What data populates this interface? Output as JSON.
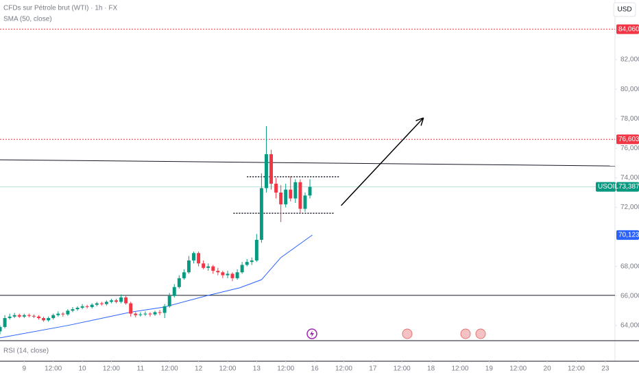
{
  "chart_data": {
    "type": "candlestick",
    "title": "CFDs sur Pétrole brut (WTI) · 1h · FX",
    "indicator": "SMA (50, close)",
    "lower_pane": "RSI (14, close)",
    "currency": "USD",
    "up_color": "#089981",
    "down_color": "#f23645",
    "x": [
      -10,
      -8,
      -6,
      -4,
      -2,
      0,
      2,
      4,
      6,
      8,
      10,
      12,
      14,
      16,
      18,
      20,
      22,
      24,
      26,
      28,
      30,
      32,
      34,
      36,
      38,
      40,
      42,
      44,
      46,
      48,
      50,
      52,
      54,
      56,
      58,
      60,
      62,
      64,
      66,
      68,
      70,
      72,
      74,
      76,
      78,
      80,
      82,
      84,
      86,
      88,
      90,
      92,
      94,
      96,
      98,
      100,
      102,
      104,
      106,
      108,
      110,
      112,
      114,
      116,
      118
    ],
    "open": [
      63.6,
      63.9,
      64.5,
      64.6,
      64.7,
      64.6,
      64.7,
      64.65,
      64.6,
      64.5,
      64.35,
      64.5,
      64.7,
      64.8,
      64.75,
      65.0,
      65.1,
      65.2,
      65.3,
      65.25,
      65.4,
      65.5,
      65.45,
      65.6,
      65.7,
      65.6,
      65.9,
      65.5,
      64.8,
      64.7,
      64.75,
      64.8,
      64.75,
      64.9,
      64.85,
      65.3,
      66.0,
      66.6,
      67.2,
      67.6,
      68.4,
      68.9,
      68.2,
      67.9,
      68.0,
      67.7,
      67.6,
      67.4,
      67.5,
      67.2,
      67.6,
      68.1,
      68.3,
      68.4,
      69.8,
      73.3,
      75.6,
      73.6,
      73.0,
      72.2,
      73.2,
      72.6,
      73.7,
      71.9,
      72.8
    ],
    "high": [
      64.0,
      64.7,
      64.8,
      64.85,
      64.8,
      64.8,
      64.8,
      64.75,
      64.7,
      64.6,
      64.6,
      64.8,
      64.95,
      64.9,
      65.1,
      65.25,
      65.3,
      65.45,
      65.4,
      65.5,
      65.6,
      65.6,
      65.7,
      65.8,
      65.8,
      66.1,
      66.0,
      65.6,
      64.9,
      64.9,
      64.95,
      64.9,
      65.0,
      65.05,
      65.45,
      66.2,
      66.8,
      67.4,
      67.8,
      68.7,
      69.0,
      69.0,
      68.4,
      68.2,
      68.1,
      67.9,
      67.7,
      67.7,
      67.6,
      67.8,
      68.3,
      68.5,
      68.6,
      70.2,
      74.3,
      77.5,
      75.9,
      74.0,
      73.5,
      73.6,
      74.1,
      73.9,
      73.9,
      73.0,
      73.9
    ],
    "low": [
      63.4,
      63.8,
      64.4,
      64.5,
      64.5,
      64.5,
      64.55,
      64.5,
      64.4,
      64.25,
      64.25,
      64.4,
      64.6,
      64.6,
      64.65,
      64.9,
      65.0,
      65.1,
      65.15,
      65.15,
      65.3,
      65.35,
      65.35,
      65.5,
      65.5,
      65.5,
      65.4,
      64.6,
      64.55,
      64.6,
      64.65,
      64.6,
      64.65,
      64.7,
      64.5,
      65.2,
      65.9,
      66.5,
      67.1,
      67.5,
      68.2,
      68.0,
      67.8,
      67.7,
      67.5,
      67.4,
      67.2,
      67.2,
      67.0,
      67.1,
      67.5,
      68.0,
      68.1,
      68.3,
      69.6,
      73.0,
      73.2,
      72.6,
      71.0,
      72.0,
      72.4,
      72.3,
      71.6,
      71.7,
      72.6
    ],
    "close": [
      63.9,
      64.5,
      64.6,
      64.7,
      64.6,
      64.7,
      64.65,
      64.6,
      64.5,
      64.35,
      64.5,
      64.7,
      64.8,
      64.75,
      65.0,
      65.1,
      65.2,
      65.3,
      65.25,
      65.4,
      65.5,
      65.45,
      65.6,
      65.7,
      65.6,
      65.9,
      65.5,
      64.8,
      64.7,
      64.75,
      64.8,
      64.75,
      64.9,
      64.85,
      65.3,
      66.0,
      66.6,
      67.2,
      67.6,
      68.4,
      68.9,
      68.2,
      67.9,
      68.0,
      67.7,
      67.6,
      67.4,
      67.5,
      67.2,
      67.6,
      68.1,
      68.3,
      68.4,
      69.8,
      73.3,
      75.6,
      73.6,
      73.0,
      72.2,
      73.2,
      72.6,
      73.7,
      71.9,
      72.8,
      73.387
    ],
    "sma": {
      "color": "#2962ff",
      "x": [
        -10,
        18,
        44,
        58,
        75,
        89,
        98,
        106,
        119
      ],
      "values": [
        63.16,
        64.0,
        64.9,
        65.25,
        66.0,
        66.55,
        67.1,
        68.6,
        70.123
      ]
    },
    "xlim": [
      -10,
      244
    ],
    "ylim": [
      62.97,
      86.04
    ],
    "xticks": [
      {
        "value": 0,
        "label": "9"
      },
      {
        "value": 12,
        "label": "12:00"
      },
      {
        "value": 24,
        "label": "10"
      },
      {
        "value": 36,
        "label": "12:00"
      },
      {
        "value": 48,
        "label": "11"
      },
      {
        "value": 60,
        "label": "12:00"
      },
      {
        "value": 72,
        "label": "12"
      },
      {
        "value": 84,
        "label": "12:00"
      },
      {
        "value": 96,
        "label": "13"
      },
      {
        "value": 108,
        "label": "12:00"
      },
      {
        "value": 120,
        "label": "16"
      },
      {
        "value": 132,
        "label": "12:00"
      },
      {
        "value": 144,
        "label": "17"
      },
      {
        "value": 156,
        "label": "12:00"
      },
      {
        "value": 168,
        "label": "18"
      },
      {
        "value": 180,
        "label": "12:00"
      },
      {
        "value": 192,
        "label": "19"
      },
      {
        "value": 204,
        "label": "12:00"
      },
      {
        "value": 216,
        "label": "20"
      },
      {
        "value": 228,
        "label": "12:00"
      },
      {
        "value": 240,
        "label": "23"
      }
    ],
    "yticks": [
      {
        "value": 64,
        "label": "64,000"
      },
      {
        "value": 66,
        "label": "66,000"
      },
      {
        "value": 68,
        "label": "68,000"
      },
      {
        "value": 72,
        "label": "72,000"
      },
      {
        "value": 74,
        "label": "74,000"
      },
      {
        "value": 76,
        "label": "76,000"
      },
      {
        "value": 78,
        "label": "78,000"
      },
      {
        "value": 80,
        "label": "80,000"
      },
      {
        "value": 82,
        "label": "82,000"
      }
    ],
    "price_labels": [
      {
        "value": 84.06,
        "label": "84,060",
        "color": "#f23645",
        "line": "dotted"
      },
      {
        "value": 76.603,
        "label": "76,603",
        "color": "#f23645",
        "line": "dotted"
      },
      {
        "value": 73.387,
        "label": "73,387",
        "symbol": "USOIL",
        "color": "#089981",
        "line": "solid"
      },
      {
        "value": 70.123,
        "label": "70,123",
        "color": "#2962ff"
      }
    ],
    "horizontal_lines": [
      66.04
    ],
    "trend_line": {
      "x": [
        -10,
        244
      ],
      "y": [
        75.22,
        74.8
      ]
    },
    "dotted_segments": [
      {
        "x": [
          92,
          130.3
        ],
        "y": 74.07
      },
      {
        "x": [
          86.4,
          128.3
        ],
        "y": 71.6
      }
    ],
    "arrow": {
      "x": [
        130.9,
        164.9
      ],
      "y": [
        72.12,
        78.06
      ]
    }
  }
}
